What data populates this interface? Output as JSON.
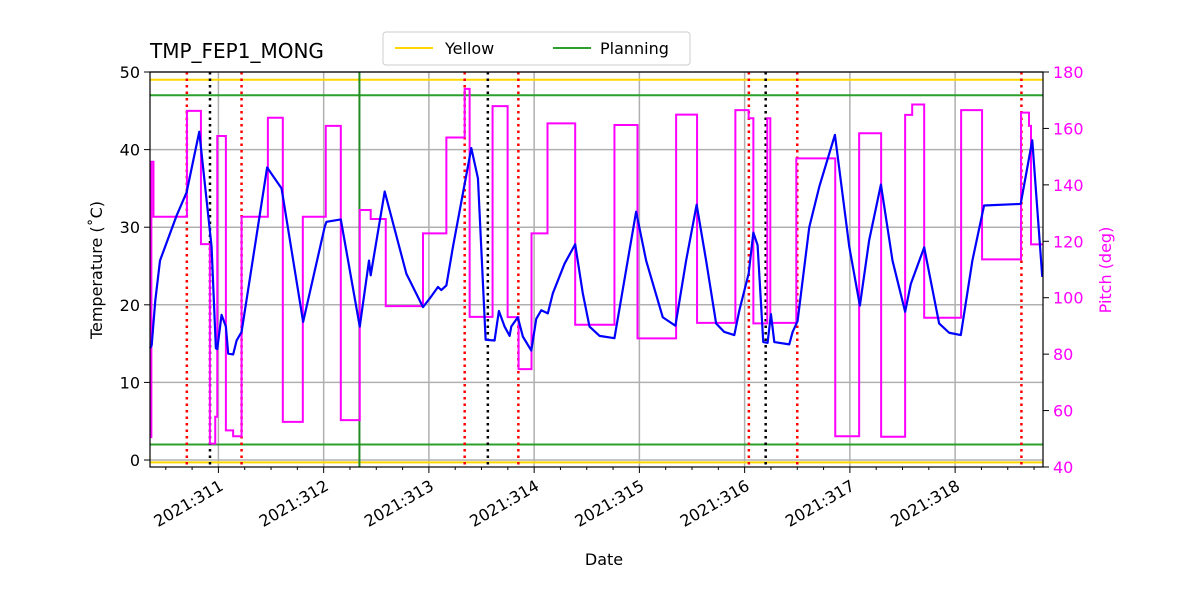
{
  "chart_data": {
    "type": "line",
    "title": "TMP_FEP1_MONG",
    "xlabel": "Date",
    "ylabel": "Temperature ($^\\circ$C)",
    "ylabel_display": "Temperature (˚C)",
    "y2label": "Pitch (deg)",
    "xlim": [
      310.35,
      318.835
    ],
    "ylim": [
      -0.9,
      50
    ],
    "y2lim": [
      40,
      180
    ],
    "x_ticks": [
      311,
      312,
      313,
      314,
      315,
      316,
      317,
      318
    ],
    "x_tick_labels": [
      "2021:311",
      "2021:312",
      "2021:313",
      "2021:314",
      "2021:315",
      "2021:316",
      "2021:317",
      "2021:318"
    ],
    "y_ticks": [
      0,
      10,
      20,
      30,
      40,
      50
    ],
    "y2_ticks": [
      40,
      60,
      80,
      100,
      120,
      140,
      160,
      180
    ],
    "grid": true,
    "legend": {
      "placement": "top-center",
      "entries": [
        {
          "label": "Yellow",
          "color": "#ffd700"
        },
        {
          "label": "Planning",
          "color": "#2ca02c"
        }
      ]
    },
    "limits": {
      "yellow": [
        49,
        -0.3
      ],
      "planning": [
        47,
        2
      ]
    },
    "colors": {
      "temperature": "#0000ff",
      "pitch": "#ff00ff",
      "yellow": "#ffd700",
      "planning": "#2ca02c",
      "planning_vline": "#228b22",
      "red_vline": "#ff0000",
      "black_vline": "#000000",
      "grid": "#b0b0b0"
    },
    "vlines": {
      "red_dotted": [
        310.7,
        311.22,
        313.34,
        313.85,
        316.04,
        316.5,
        318.63
      ],
      "black_dotted": [
        310.92,
        313.56,
        316.2
      ],
      "green_solid": [
        312.34
      ]
    },
    "series": [
      {
        "axis": "left",
        "x": [
          310.35,
          310.366,
          310.4,
          310.445,
          310.603,
          310.698,
          310.818,
          310.935,
          310.976,
          310.989,
          311.03,
          311.071,
          311.093,
          311.14,
          311.173,
          311.22,
          311.463,
          311.6,
          311.805,
          312.011,
          312.027,
          312.163,
          312.343,
          312.431,
          312.447,
          312.58,
          312.786,
          312.944,
          313.007,
          313.086,
          313.118,
          313.166,
          313.229,
          313.34,
          313.403,
          313.466,
          313.539,
          313.624,
          313.665,
          313.719,
          313.767,
          313.783,
          313.845,
          313.893,
          313.973,
          314.02,
          314.068,
          314.13,
          314.178,
          314.289,
          314.39,
          314.462,
          314.526,
          314.621,
          314.763,
          314.874,
          314.969,
          315.064,
          315.222,
          315.342,
          315.444,
          315.544,
          315.634,
          315.729,
          315.807,
          315.902,
          315.95,
          316.038,
          316.083,
          316.123,
          316.177,
          316.218,
          316.25,
          316.282,
          316.424,
          316.456,
          316.503,
          316.614,
          316.709,
          316.858,
          316.994,
          317.095,
          317.183,
          317.295,
          317.405,
          317.525,
          317.579,
          317.706,
          317.848,
          317.943,
          318.054,
          318.164,
          318.275,
          318.623,
          318.733,
          318.828
        ],
        "y": [
          14.4,
          14.8,
          20.5,
          25.7,
          31.5,
          34.5,
          42.3,
          27.5,
          14.4,
          14.3,
          18.7,
          17.2,
          13.7,
          13.6,
          15.4,
          16.5,
          37.7,
          35.0,
          17.8,
          30.1,
          30.7,
          31.0,
          17.2,
          25.7,
          23.8,
          34.6,
          24.0,
          19.7,
          20.8,
          22.3,
          21.9,
          22.5,
          27.5,
          35.6,
          40.2,
          36.3,
          15.5,
          15.4,
          19.2,
          17.2,
          16.0,
          17.2,
          18.4,
          15.9,
          14.1,
          18.2,
          19.3,
          18.9,
          21.5,
          25.3,
          27.8,
          21.5,
          17.2,
          16.0,
          15.7,
          24.5,
          32.0,
          25.7,
          18.4,
          17.3,
          25.7,
          32.9,
          25.7,
          17.6,
          16.5,
          16.1,
          19.3,
          24.0,
          29.3,
          27.7,
          15.2,
          15.1,
          18.8,
          15.2,
          14.9,
          16.5,
          17.9,
          30.0,
          35.2,
          41.9,
          27.5,
          19.9,
          28.3,
          35.5,
          25.7,
          19.1,
          22.7,
          27.4,
          17.6,
          16.4,
          16.1,
          25.7,
          32.8,
          33.0,
          41.2,
          23.6
        ]
      },
      {
        "axis": "right",
        "step": "post",
        "x": [
          310.35,
          310.363,
          310.383,
          310.701,
          310.834,
          310.919,
          310.97,
          310.989,
          311.071,
          311.14,
          311.22,
          311.47,
          311.612,
          311.802,
          312.02,
          312.163,
          312.343,
          312.447,
          312.59,
          312.944,
          313.166,
          313.34,
          313.387,
          313.605,
          313.748,
          313.852,
          313.975,
          314.127,
          314.39,
          314.763,
          314.982,
          315.349,
          315.548,
          315.912,
          316.038,
          316.083,
          316.215,
          316.244,
          316.491,
          316.861,
          317.088,
          317.297,
          317.525,
          317.592,
          317.706,
          318.057,
          318.256,
          318.626,
          318.702,
          318.721
        ],
        "y": [
          50.6,
          148.2,
          128.7,
          166.2,
          119.0,
          48.3,
          57.8,
          157.3,
          53.0,
          50.9,
          128.7,
          163.8,
          56.0,
          128.7,
          160.9,
          56.6,
          131.1,
          127.9,
          97.0,
          122.8,
          156.8,
          174.0,
          93.2,
          167.9,
          93.1,
          74.7,
          122.8,
          161.8,
          90.4,
          161.2,
          85.6,
          164.9,
          91.1,
          166.5,
          163.6,
          90.9,
          163.6,
          91.1,
          149.4,
          50.9,
          158.3,
          50.7,
          164.8,
          168.5,
          92.9,
          166.5,
          113.6,
          165.6,
          160.9,
          118.9
        ],
        "x_end": 318.835
      }
    ]
  }
}
